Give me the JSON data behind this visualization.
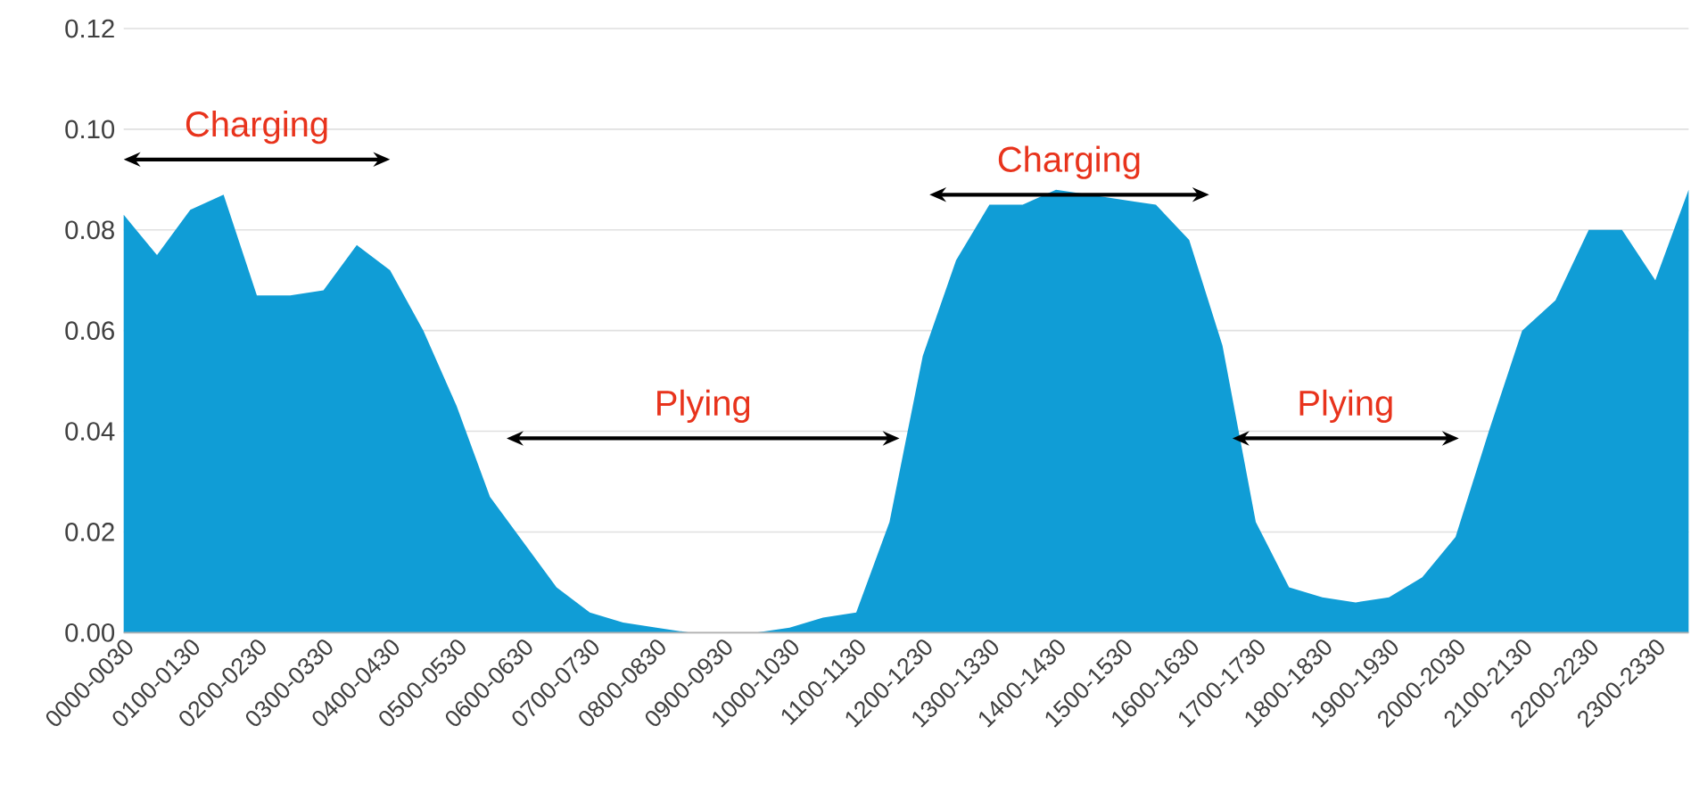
{
  "chart_data": {
    "type": "area",
    "color": "#109dd6",
    "categories": [
      "0000-0030",
      null,
      "0100-0130",
      null,
      "0200-0230",
      null,
      "0300-0330",
      null,
      "0400-0430",
      null,
      "0500-0530",
      null,
      "0600-0630",
      null,
      "0700-0730",
      null,
      "0800-0830",
      null,
      "0900-0930",
      null,
      "1000-1030",
      null,
      "1100-1130",
      null,
      "1200-1230",
      null,
      "1300-1330",
      null,
      "1400-1430",
      null,
      "1500-1530",
      null,
      "1600-1630",
      null,
      "1700-1730",
      null,
      "1800-1830",
      null,
      "1900-1930",
      null,
      "2000-2030",
      null,
      "2100-2130",
      null,
      "2200-2230",
      null,
      "2300-2330",
      null
    ],
    "values": [
      0.083,
      0.075,
      0.084,
      0.087,
      0.067,
      0.067,
      0.068,
      0.077,
      0.072,
      0.06,
      0.045,
      0.027,
      0.018,
      0.009,
      0.004,
      0.002,
      0.001,
      0.0,
      0.0,
      0.0,
      0.001,
      0.003,
      0.004,
      0.022,
      0.055,
      0.074,
      0.085,
      0.085,
      0.088,
      0.087,
      0.086,
      0.085,
      0.078,
      0.057,
      0.022,
      0.009,
      0.007,
      0.006,
      0.007,
      0.011,
      0.019,
      0.04,
      0.06,
      0.066,
      0.08,
      0.08,
      0.07,
      0.088
    ],
    "ylim": [
      0,
      0.12
    ],
    "yticks": [
      {
        "value": 0,
        "label": "0.00"
      },
      {
        "value": 0.02,
        "label": "0.02"
      },
      {
        "value": 0.04,
        "label": "0.04"
      },
      {
        "value": 0.06,
        "label": "0.06"
      },
      {
        "value": 0.08,
        "label": "0.08"
      },
      {
        "value": 0.1,
        "label": "0.10"
      },
      {
        "value": 0.12,
        "label": "0.12"
      }
    ],
    "grid": "y",
    "annotations": [
      "Charging",
      "Plying",
      "Charging",
      "Plying"
    ]
  }
}
